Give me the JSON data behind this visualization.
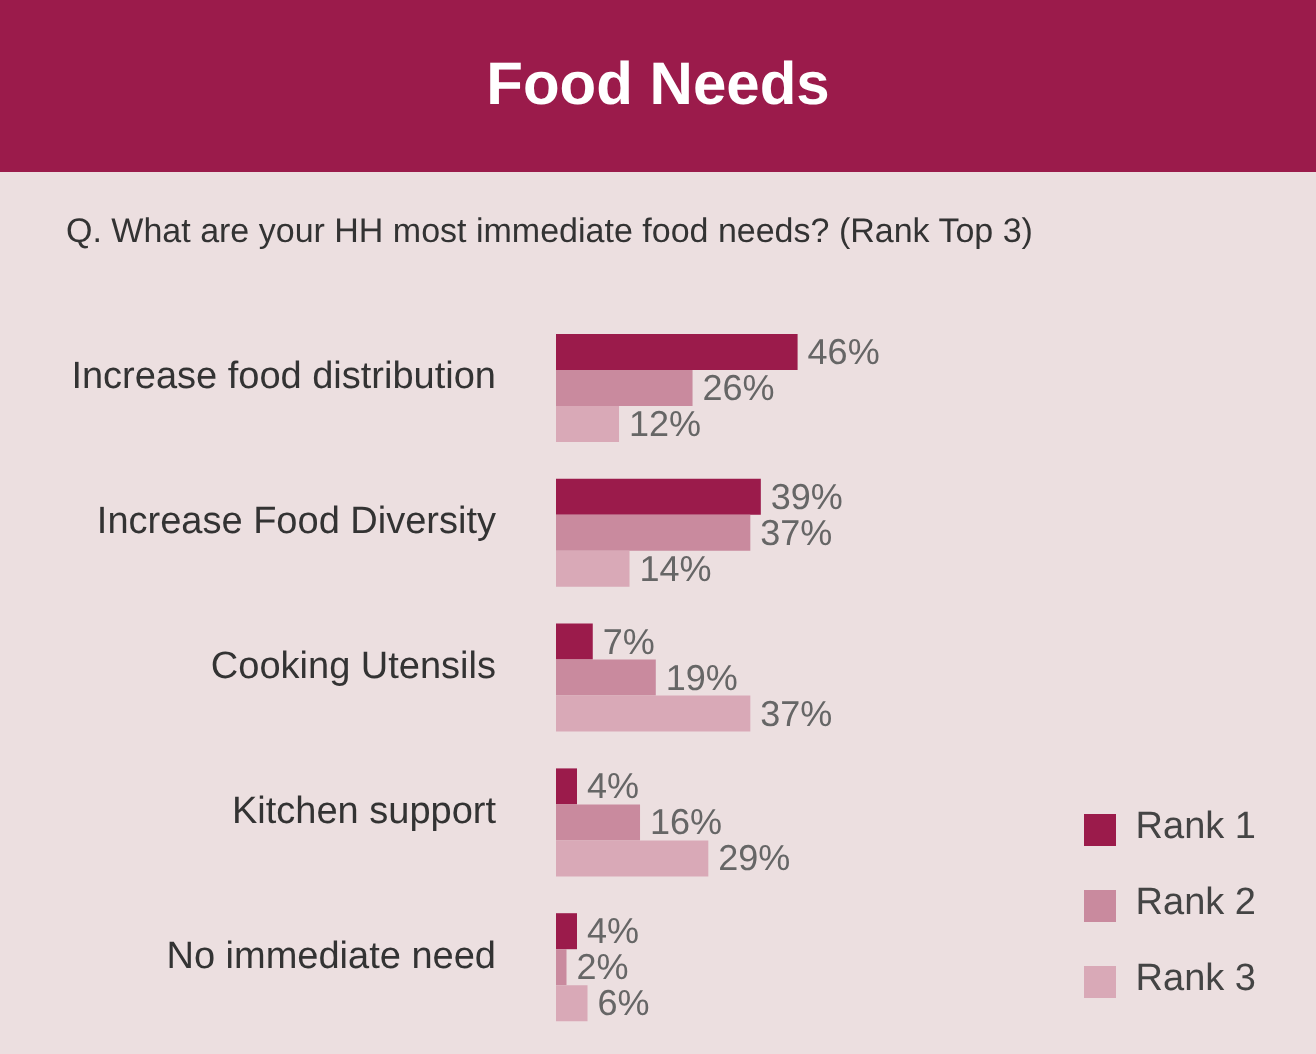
{
  "chart_data": {
    "type": "bar",
    "orientation": "horizontal",
    "title": "Food Needs",
    "subtitle": "Q. What are your HH most immediate food needs?  (Rank Top 3)",
    "categories": [
      "Increase food distribution",
      "Increase Food Diversity",
      "Cooking Utensils",
      "Kitchen support",
      "No immediate need"
    ],
    "series": [
      {
        "name": "Rank 1",
        "color": "#9b1b4b",
        "values": [
          46,
          39,
          7,
          4,
          4
        ],
        "value_labels": [
          "46%",
          "39%",
          "7%",
          "4%",
          "4%"
        ]
      },
      {
        "name": "Rank 2",
        "color": "#c98a9e",
        "values": [
          26,
          37,
          19,
          16,
          2
        ],
        "value_labels": [
          "26%",
          "37%",
          "19%",
          "16%",
          "2%"
        ]
      },
      {
        "name": "Rank 3",
        "color": "#d9a9b7",
        "values": [
          12,
          14,
          37,
          29,
          6
        ],
        "value_labels": [
          "12%",
          "14%",
          "37%",
          "29%",
          "6%"
        ]
      }
    ],
    "legend": "bottom right",
    "grid": false
  }
}
